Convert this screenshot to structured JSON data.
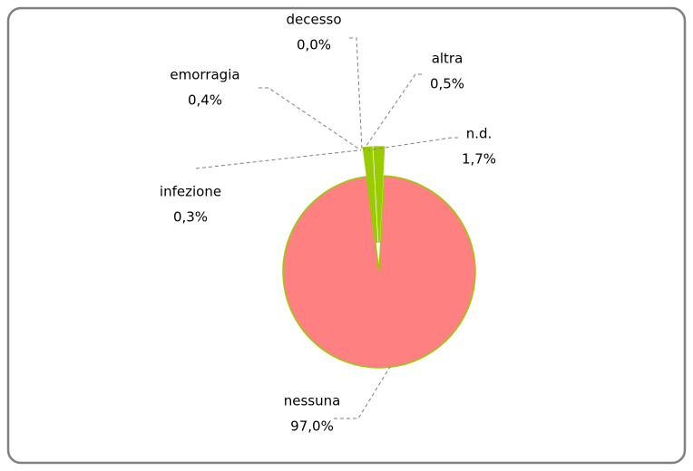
{
  "chart_data": {
    "type": "pie",
    "categories": [
      "nessuna",
      "infezione",
      "emorragia",
      "decesso",
      "altra",
      "n.d."
    ],
    "values": [
      97.0,
      0.3,
      0.4,
      0.0,
      0.5,
      1.7
    ],
    "value_labels": [
      "97,0%",
      "0,3%",
      "0,4%",
      "0,0%",
      "0,5%",
      "1,7%"
    ],
    "colors": [
      "#ff8080",
      "#99cc00",
      "#99cc00",
      "#99cc00",
      "#99cc00",
      "#99cc00"
    ],
    "edge_color": "#99cc00"
  }
}
